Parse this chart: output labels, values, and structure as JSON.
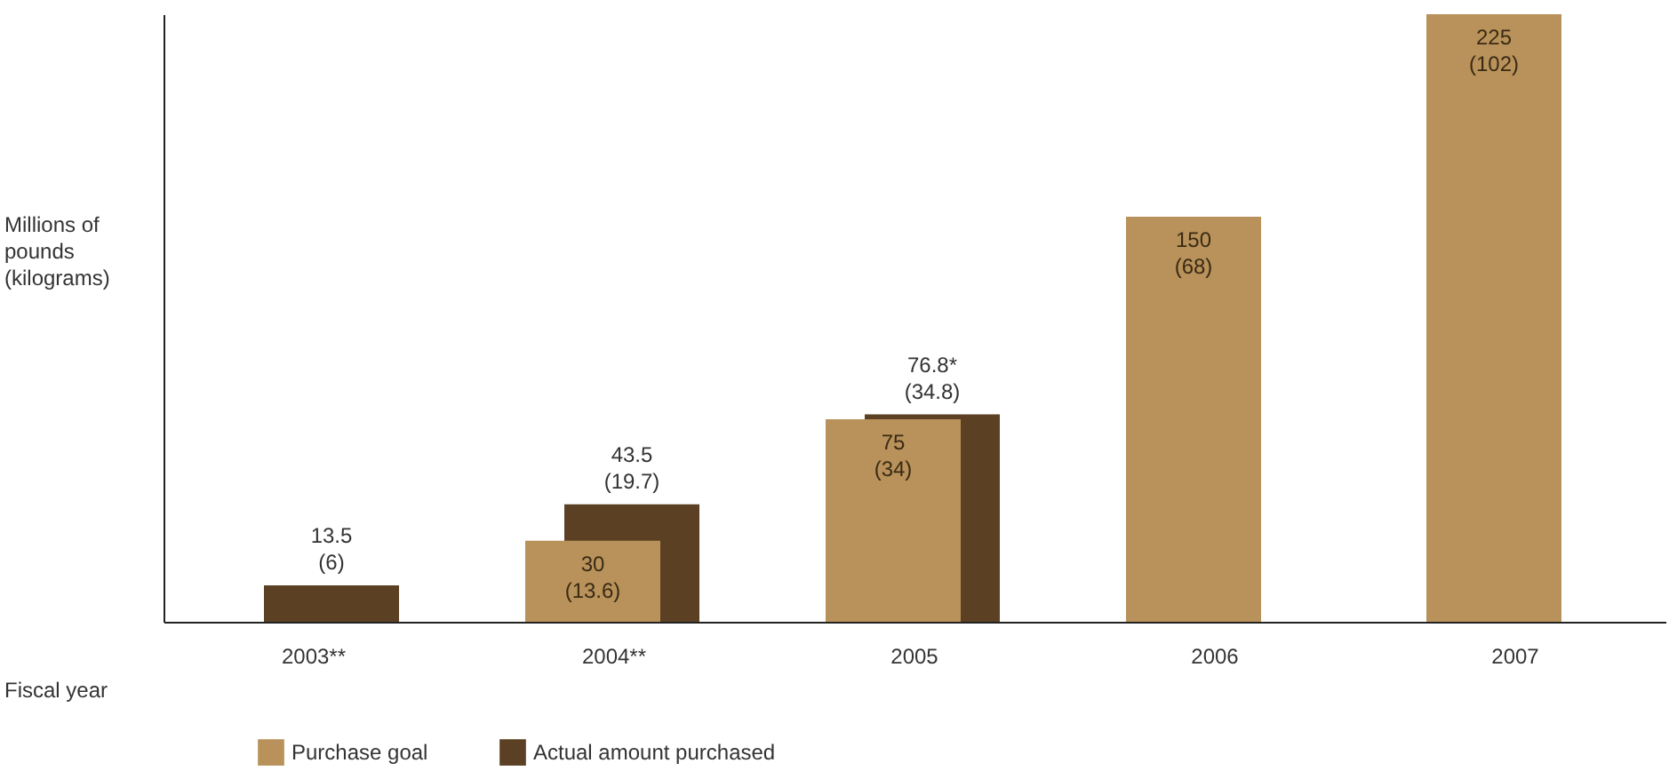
{
  "chart_data": {
    "type": "bar",
    "ylabel": "Millions of pounds (kilograms)",
    "xlabel": "Fiscal year",
    "categories": [
      "2003**",
      "2004**",
      "2005",
      "2006",
      "2007"
    ],
    "series": [
      {
        "name": "Purchase goal",
        "color": "#b8925a",
        "values": [
          null,
          30,
          75,
          150,
          225
        ],
        "value_labels": [
          null,
          "30\n(13.6)",
          "75\n(34)",
          "150\n(68)",
          "225\n(102)"
        ]
      },
      {
        "name": "Actual amount purchased",
        "color": "#5b4024",
        "values": [
          13.5,
          43.5,
          76.8,
          null,
          null
        ],
        "value_labels": [
          "13.5\n(6)",
          "43.5\n(19.7)",
          "76.8*\n(34.8)",
          null,
          null
        ]
      }
    ],
    "grid": false,
    "legend": "bottom left"
  }
}
